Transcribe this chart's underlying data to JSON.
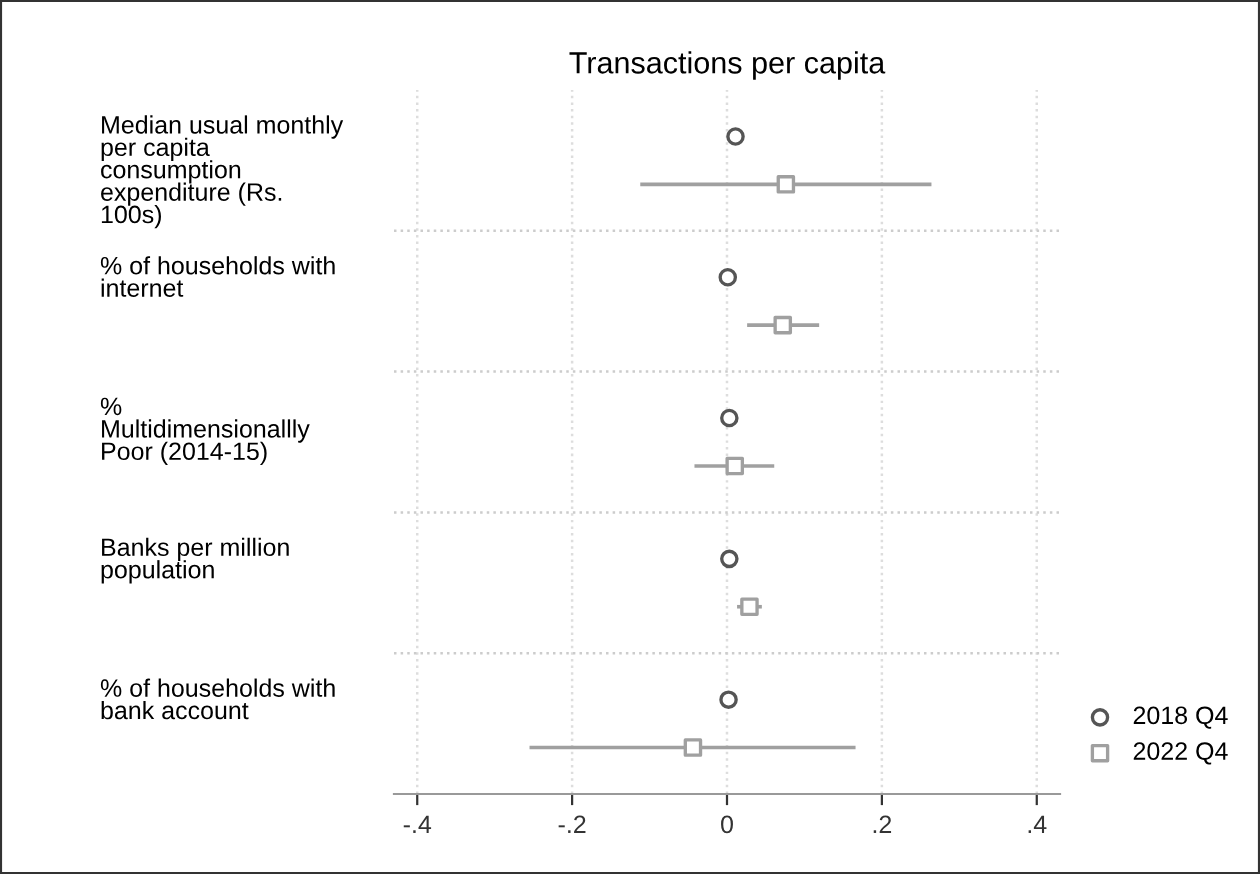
{
  "chart_data": {
    "type": "scatter",
    "orientation": "horizontal",
    "title": "Transactions per capita",
    "categories": [
      "Median usual monthly\nper capita\nconsumption\nexpenditure (Rs.\n100s)",
      "% of households with\ninternet",
      "%\nMultidimensionallly\nPoor (2014-15)",
      "Banks per million\npopulation",
      "% of households with\nbank account"
    ],
    "series": [
      {
        "name": "2018 Q4",
        "color": "#555555",
        "marker": "circle",
        "values": [
          0.011,
          0.001,
          0.003,
          0.003,
          0.002
        ]
      },
      {
        "name": "2022 Q4",
        "color": "#a0a0a0",
        "marker": "square",
        "values": [
          0.076,
          0.072,
          0.01,
          0.029,
          -0.044
        ],
        "errors": [
          [
            -0.112,
            0.264
          ],
          [
            0.026,
            0.119
          ],
          [
            -0.042,
            0.061
          ],
          [
            0.013,
            0.045
          ],
          [
            -0.255,
            0.166
          ]
        ]
      }
    ],
    "xlim": [
      -0.43,
      0.43
    ],
    "xticks": [
      {
        "value": -0.4,
        "label": "-.4"
      },
      {
        "value": -0.2,
        "label": "-.2"
      },
      0,
      {
        "value": 0.2,
        "label": ".2"
      },
      {
        "value": 0.4,
        "label": ".4"
      }
    ],
    "grid": true,
    "legend": "bottom right"
  }
}
